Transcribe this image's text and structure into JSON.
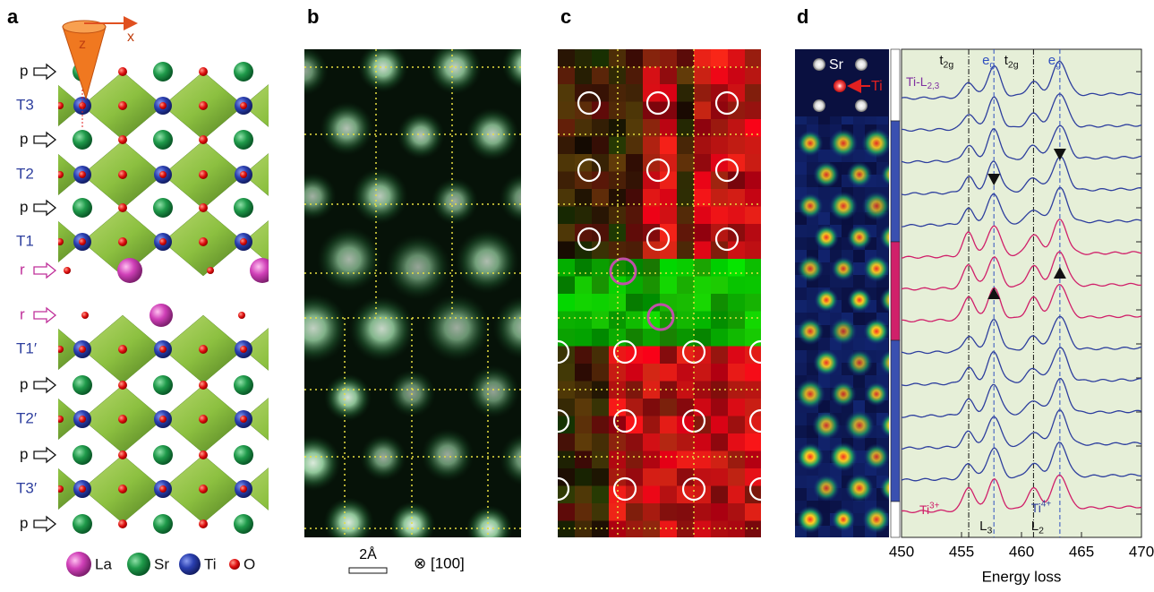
{
  "panels": {
    "a": {
      "label": "a",
      "axes": [
        "z",
        "x"
      ],
      "rows": [
        "p",
        "T3",
        "p",
        "T2",
        "p",
        "T1",
        "r",
        "r",
        "T1′",
        "p",
        "T2′",
        "p",
        "T3′",
        "p"
      ],
      "legend": [
        "La",
        "Sr",
        "Ti",
        "O"
      ]
    },
    "b": {
      "label": "b",
      "scale_bar": "2Å",
      "direction": "⊗ [100]"
    },
    "c": {
      "label": "c"
    },
    "d": {
      "label": "d",
      "inset_labels": [
        "Sr",
        "Ti"
      ],
      "peak_labels": [
        {
          "base": "t",
          "sub": "2g"
        },
        {
          "base": "e",
          "sub": "g"
        },
        {
          "base": "t",
          "sub": "2g"
        },
        {
          "base": "e",
          "sub": "g"
        }
      ],
      "edge_label": {
        "base": "Ti-L",
        "sub": "2,3"
      },
      "ref_labels": [
        {
          "base": "Ti",
          "sup": "3+"
        },
        {
          "base": "Ti",
          "sup": "4+"
        }
      ],
      "line_labels": [
        {
          "base": "L",
          "sub": "3"
        },
        {
          "base": "L",
          "sub": "2"
        }
      ],
      "chart": {
        "type": "line",
        "xlabel": "Energy loss",
        "xlim": [
          450,
          470
        ],
        "xticks": [
          450,
          455,
          460,
          465,
          470
        ],
        "reference_lines": [
          455.6,
          457.7,
          461,
          463.2
        ],
        "spectrum_colors": [
          "#2e3f9e",
          "#2e3f9e",
          "#2e3f9e",
          "#2e3f9e",
          "#2e3f9e",
          "#d0206a",
          "#d0206a",
          "#d0206a",
          "#2e3f9e",
          "#2e3f9e",
          "#2e3f9e",
          "#2e3f9e",
          "#2e3f9e",
          "#d0206a"
        ]
      }
    }
  }
}
